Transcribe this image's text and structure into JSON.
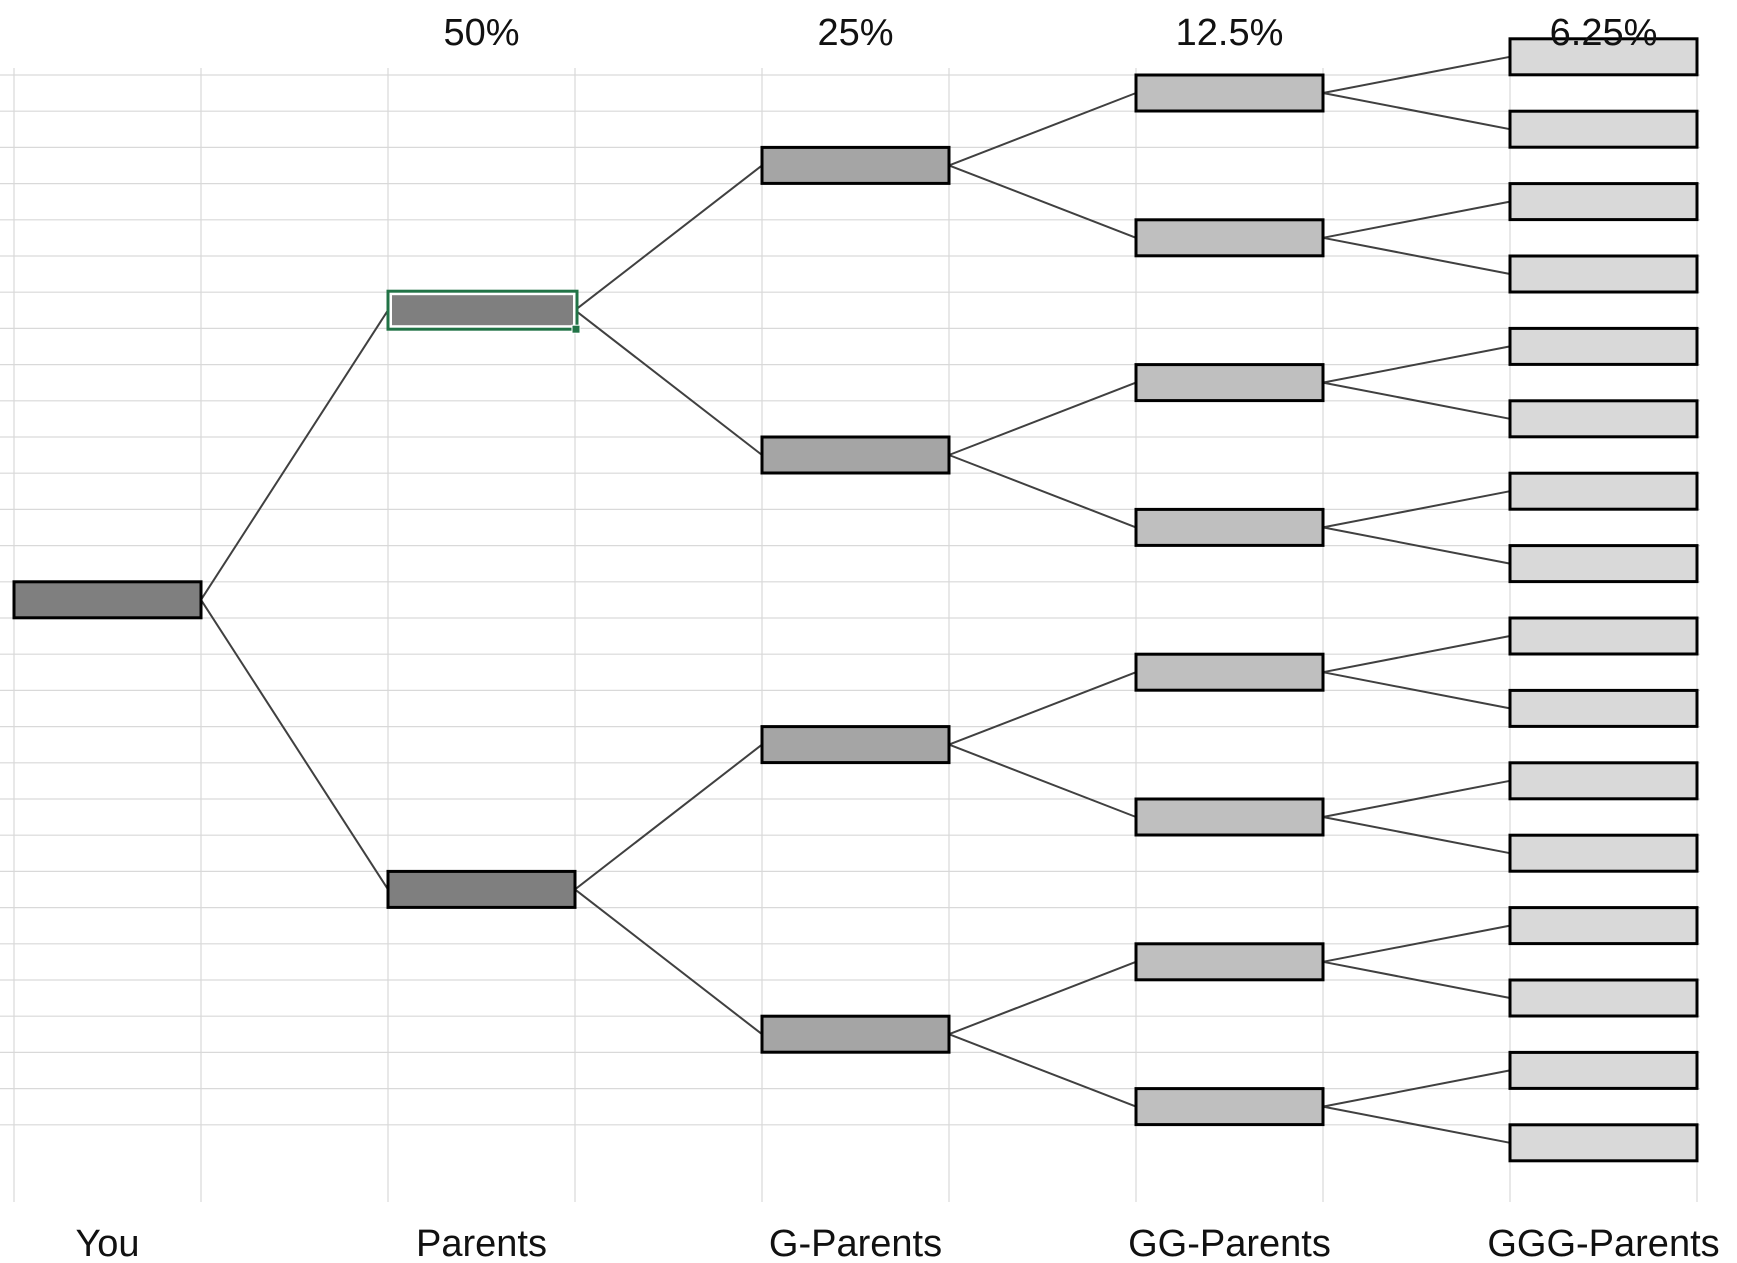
{
  "generations": [
    {
      "label": "You",
      "percent": "",
      "fill": "#7f7f7f"
    },
    {
      "label": "Parents",
      "percent": "50%",
      "fill": "#7f7f7f"
    },
    {
      "label": "G-Parents",
      "percent": "25%",
      "fill": "#a5a5a5"
    },
    {
      "label": "GG-Parents",
      "percent": "12.5%",
      "fill": "#bfbfbf"
    },
    {
      "label": "GGG-Parents",
      "percent": "6.25%",
      "fill": "#d9d9d9"
    }
  ],
  "colors": {
    "gridline": "#d9d9d9",
    "box_border": "#000000",
    "connector": "#404040",
    "selected_cell_border": "#217346",
    "background": "#ffffff"
  },
  "selected_cell": "parents-top"
}
